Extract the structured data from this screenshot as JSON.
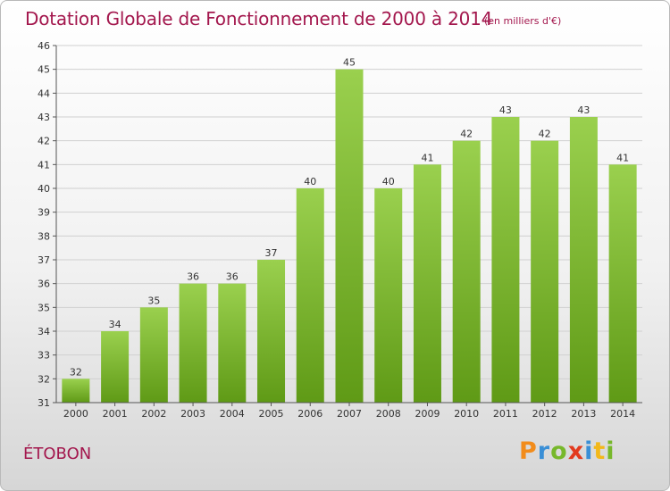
{
  "title": "Dotation Globale de Fonctionnement de 2000 à 2014",
  "subtitle": "(en milliers d'€)",
  "location": "ÉTOBON",
  "logo": {
    "text": "Proxiti",
    "letters": [
      {
        "ch": "P",
        "color": "#f28c1b"
      },
      {
        "ch": "r",
        "color": "#3a8fd6"
      },
      {
        "ch": "o",
        "color": "#77b82b"
      },
      {
        "ch": "x",
        "color": "#e23a1e"
      },
      {
        "ch": "i",
        "color": "#3a8fd6"
      },
      {
        "ch": "t",
        "color": "#f2b81b"
      },
      {
        "ch": "i",
        "color": "#77b82b"
      }
    ]
  },
  "colors": {
    "bar_top": "#9ad04e",
    "bar_bottom": "#5f9a16",
    "text": "#a3174d",
    "axis": "#333333"
  },
  "chart_data": {
    "type": "bar",
    "title": "Dotation Globale de Fonctionnement de 2000 à 2014",
    "subtitle": "(en milliers d'€)",
    "categories": [
      "2000",
      "2001",
      "2002",
      "2003",
      "2004",
      "2005",
      "2006",
      "2007",
      "2008",
      "2009",
      "2010",
      "2011",
      "2012",
      "2013",
      "2014"
    ],
    "values": [
      32,
      34,
      35,
      36,
      36,
      37,
      40,
      45,
      40,
      41,
      42,
      43,
      42,
      43,
      41
    ],
    "ylim": [
      31,
      46
    ],
    "yticks": [
      31,
      32,
      33,
      34,
      35,
      36,
      37,
      38,
      39,
      40,
      41,
      42,
      43,
      44,
      45,
      46
    ],
    "grid": true
  }
}
